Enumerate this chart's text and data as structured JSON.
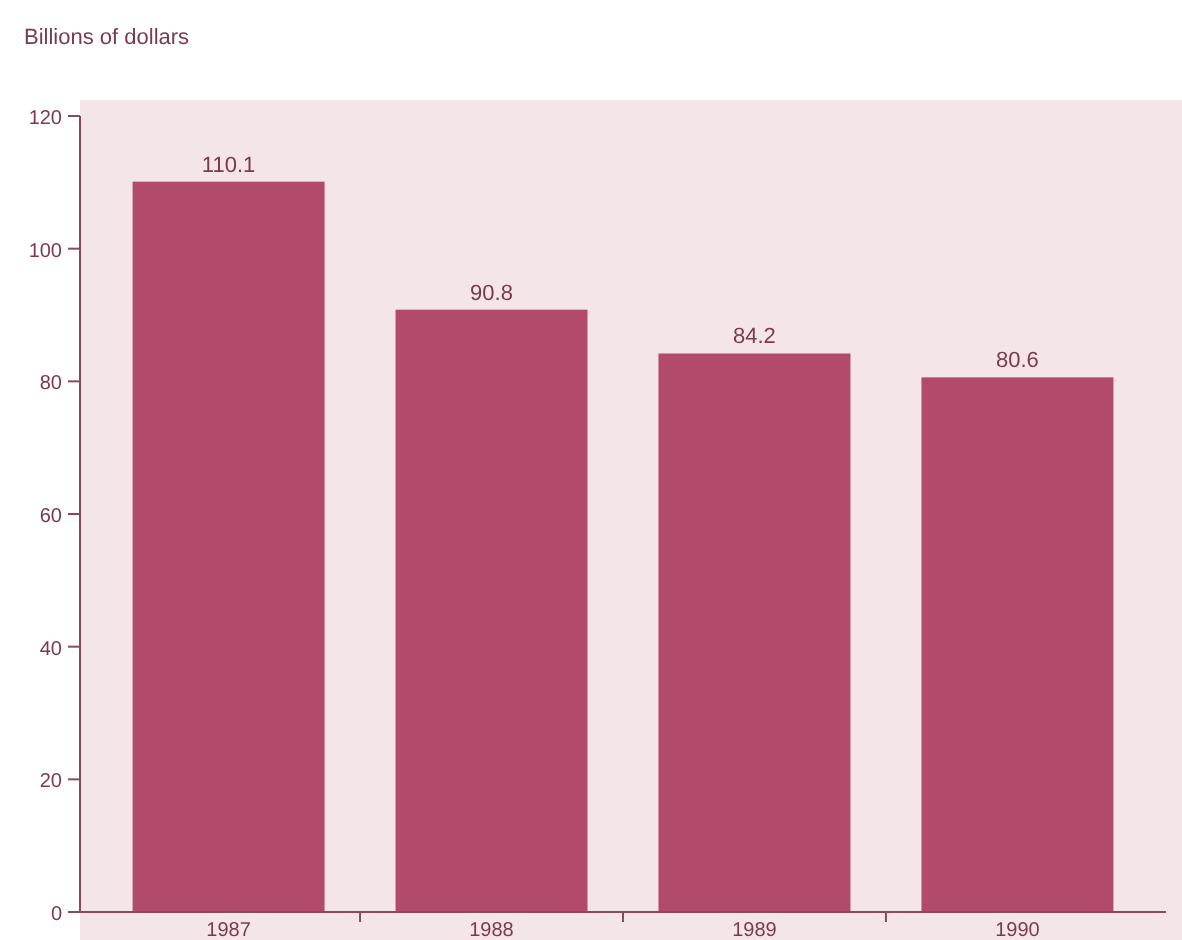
{
  "chart_data": {
    "type": "bar",
    "ylabel": "Billions of dollars",
    "categories": [
      "1987",
      "1988",
      "1989",
      "1990"
    ],
    "values": [
      110.1,
      90.8,
      84.2,
      80.6
    ],
    "color": "#b24a6c",
    "ylim": [
      0,
      120
    ],
    "yticks": [
      0,
      20,
      40,
      60,
      80,
      100,
      120
    ],
    "data_labels": true
  }
}
